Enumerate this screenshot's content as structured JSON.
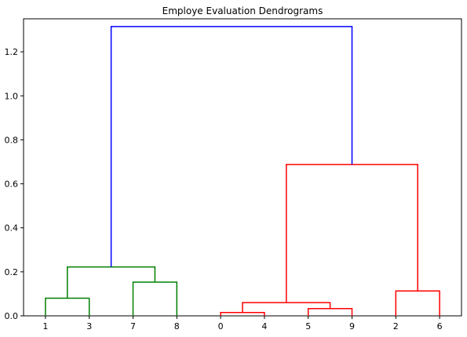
{
  "chart_data": {
    "type": "dendrogram",
    "title": "Employe Evaluation Dendrograms",
    "xlabel": "",
    "ylabel": "",
    "ylim": [
      0,
      1.35
    ],
    "yticks": [
      "0.0",
      "0.2",
      "0.4",
      "0.6",
      "0.8",
      "1.0",
      "1.2"
    ],
    "ytick_values": [
      0.0,
      0.2,
      0.4,
      0.6,
      0.8,
      1.0,
      1.2
    ],
    "leaves": [
      "1",
      "3",
      "7",
      "8",
      "0",
      "4",
      "5",
      "9",
      "2",
      "6"
    ],
    "grid": false,
    "merges": [
      {
        "left": "leaf:0",
        "right": "leaf:1",
        "height": 0.08,
        "color": "#008000"
      },
      {
        "left": "leaf:2",
        "right": "leaf:3",
        "height": 0.153,
        "color": "#008000"
      },
      {
        "left": "merge:0",
        "right": "merge:1",
        "height": 0.222,
        "color": "#008000"
      },
      {
        "left": "leaf:4",
        "right": "leaf:5",
        "height": 0.015,
        "color": "#ff0000"
      },
      {
        "left": "leaf:6",
        "right": "leaf:7",
        "height": 0.033,
        "color": "#ff0000"
      },
      {
        "left": "merge:3",
        "right": "merge:4",
        "height": 0.06,
        "color": "#ff0000"
      },
      {
        "left": "leaf:8",
        "right": "leaf:9",
        "height": 0.113,
        "color": "#ff0000"
      },
      {
        "left": "merge:5",
        "right": "merge:6",
        "height": 0.688,
        "color": "#ff0000"
      },
      {
        "left": "merge:2",
        "right": "merge:7",
        "height": 1.315,
        "color": "#0000ff"
      }
    ]
  }
}
